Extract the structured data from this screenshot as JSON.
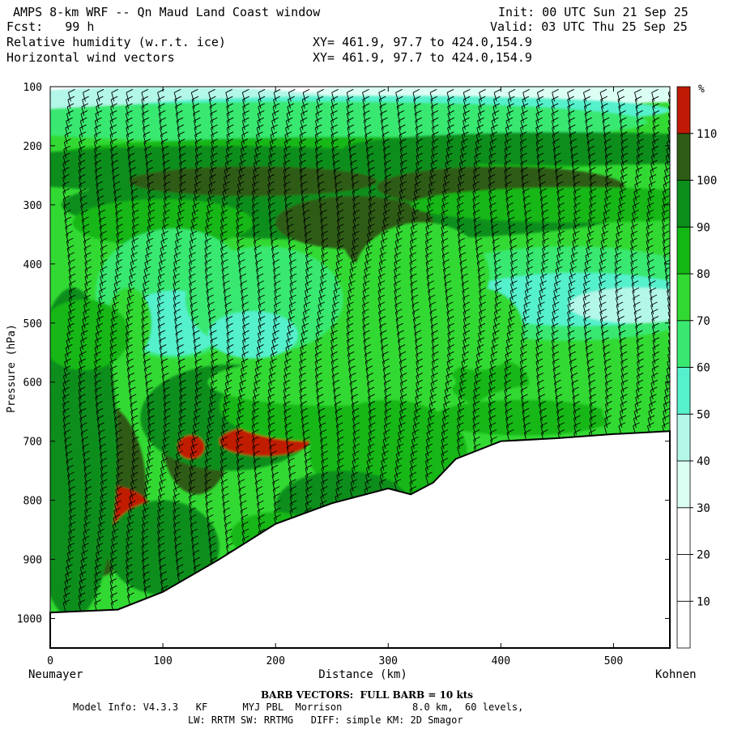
{
  "header": {
    "title_left": "AMPS 8-km WRF -- Qn Maud Land Coast window",
    "forecast": "Fcst:   99 h",
    "init": "Init: 00 UTC Sun 21 Sep 25",
    "valid": "Valid: 03 UTC Thu 25 Sep 25",
    "field1": "Relative humidity (w.r.t. ice)",
    "field1_xy": "XY= 461.9, 97.7 to 424.0,154.9",
    "field2": "Horizontal wind vectors",
    "field2_xy": "XY= 461.9, 97.7 to 424.0,154.9"
  },
  "footer": {
    "barb_note": "BARB VECTORS:  FULL BARB = 10 kts",
    "model_line1": "Model Info: V4.3.3   KF      MYJ PBL  Morrison            8.0 km,  60 levels,",
    "model_line2": "LW: RRTM SW: RRTMG   DIFF: simple KM: 2D Smagor"
  },
  "chart_data": {
    "type": "heatmap",
    "title": "Relative humidity (w.r.t. ice)",
    "xlabel": "Distance (km)",
    "ylabel": "Pressure (hPa)",
    "xlim": [
      0,
      550
    ],
    "ylim": [
      1050,
      100
    ],
    "x_ticks": [
      0,
      100,
      200,
      300,
      400,
      500
    ],
    "y_ticks": [
      100,
      200,
      300,
      400,
      500,
      600,
      700,
      800,
      900,
      1000
    ],
    "x_end_labels": {
      "left": "Neumayer",
      "right": "Kohnen"
    },
    "colorbar": {
      "unit": "%",
      "levels": [
        10,
        20,
        30,
        40,
        50,
        60,
        70,
        80,
        90,
        100,
        110
      ],
      "colors": [
        "#ffffff",
        "#ffffff",
        "#dcfff4",
        "#b3f7e9",
        "#55f0cc",
        "#38e870",
        "#33d933",
        "#13b713",
        "#0b8e1a",
        "#2e5c14",
        "#c01a06"
      ]
    },
    "terrain_profile": {
      "distance_km": [
        0,
        60,
        100,
        150,
        200,
        250,
        300,
        320,
        340,
        360,
        400,
        450,
        500,
        550
      ],
      "surface_pressure_hPa": [
        990,
        985,
        955,
        900,
        840,
        805,
        780,
        790,
        770,
        730,
        700,
        695,
        688,
        683
      ]
    }
  }
}
